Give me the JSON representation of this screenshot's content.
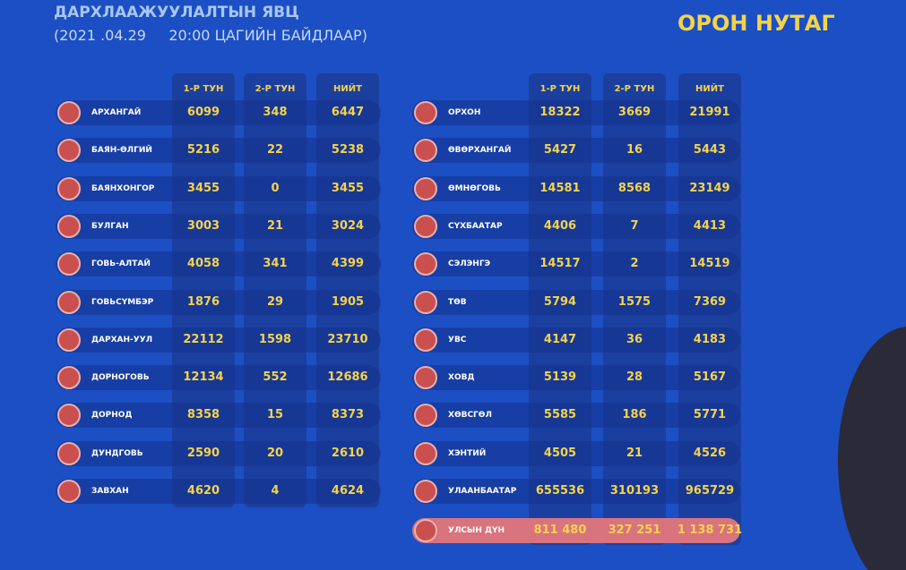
{
  "header": {
    "title": "ДАРХЛААЖУУЛАЛТЫН ЯВЦ",
    "subtitle": "(2021 .04.29     20:00 ЦАГИЙН БАЙДЛААР)",
    "region": "ОРОН НУТАГ"
  },
  "tables": [
    {
      "columns": [
        "1-Р ТУН",
        "2-Р ТУН",
        "НИЙТ"
      ],
      "rows": [
        [
          "АРХАНГАЙ",
          6099,
          348,
          6447
        ],
        [
          "БАЯН-ӨЛГИЙ",
          5216,
          22,
          5238
        ],
        [
          "БАЯНХОНГОР",
          3455,
          0,
          3455
        ],
        [
          "БУЛГАН",
          3003,
          21,
          3024
        ],
        [
          "ГОВЬ-АЛТАЙ",
          4058,
          341,
          4399
        ],
        [
          "ГОВЬСҮМБЭР",
          1876,
          29,
          1905
        ],
        [
          "ДАРХАН-УУЛ",
          22112,
          1598,
          23710
        ],
        [
          "ДОРНОГОВЬ",
          12134,
          552,
          12686
        ],
        [
          "ДОРНОД",
          8358,
          15,
          8373
        ],
        [
          "ДУНДГОВЬ",
          2590,
          20,
          2610
        ],
        [
          "ЗАВХАН",
          4620,
          4,
          4624
        ]
      ]
    },
    {
      "columns": [
        "1-Р ТУН",
        "2-Р ТУН",
        "НИЙТ"
      ],
      "rows": [
        [
          "ОРХОН",
          18322,
          3669,
          21991
        ],
        [
          "ӨВӨРХАНГАЙ",
          5427,
          16,
          5443
        ],
        [
          "ӨМНӨГОВЬ",
          14581,
          8568,
          23149
        ],
        [
          "СҮХБААТАР",
          4406,
          7,
          4413
        ],
        [
          "СЭЛЭНГЭ",
          14517,
          2,
          14519
        ],
        [
          "ТӨВ",
          5794,
          1575,
          7369
        ],
        [
          "УВС",
          4147,
          36,
          4183
        ],
        [
          "ХОВД",
          5139,
          28,
          5167
        ],
        [
          "ХӨВСГӨЛ",
          5585,
          186,
          5771
        ],
        [
          "ХЭНТИЙ",
          4505,
          21,
          4526
        ],
        [
          "УЛААНБААТАР",
          655536,
          310193,
          965729
        ]
      ],
      "total": [
        "УЛСЫН ДҮН",
        "811 480",
        "327 251",
        "1 138 731"
      ]
    }
  ]
}
